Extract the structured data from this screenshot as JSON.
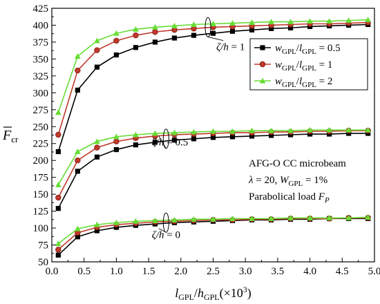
{
  "chart_data": {
    "type": "line",
    "xlabel_parts": {
      "l": "l",
      "l_sub": "GPL",
      "slash": "/",
      "h": "h",
      "h_sub": "GPL",
      "suffix": "(×10",
      "sup": "3",
      "close": ")"
    },
    "ylabel_parts": {
      "main": "F",
      "sub": "cr"
    },
    "xlim": [
      0,
      5
    ],
    "ylim": [
      50,
      425
    ],
    "x_ticks": [
      0.0,
      0.5,
      1.0,
      1.5,
      2.0,
      2.5,
      3.0,
      3.5,
      4.0,
      4.5,
      5.0
    ],
    "x_tick_labels": [
      "0.0",
      "0.5",
      "1.0",
      "1.5",
      "2.0",
      "2.5",
      "3.0",
      "3.5",
      "4.0",
      "4.5",
      "5.0"
    ],
    "y_ticks": [
      50,
      75,
      100,
      125,
      150,
      175,
      200,
      225,
      250,
      275,
      300,
      325,
      350,
      375,
      400,
      425
    ],
    "y_tick_labels": [
      "50",
      "75",
      "100",
      "125",
      "150",
      "175",
      "200",
      "225",
      "250",
      "275",
      "300",
      "325",
      "350",
      "375",
      "400",
      "425"
    ],
    "x": [
      0.1,
      0.4,
      0.7,
      1.0,
      1.3,
      1.6,
      1.9,
      2.2,
      2.5,
      2.8,
      3.1,
      3.4,
      3.7,
      4.0,
      4.3,
      4.6,
      4.9
    ],
    "legend": {
      "placement": "top-right",
      "entries": [
        {
          "pre": "w",
          "pre_sub": "GPL",
          "slash": "/",
          "mid": "l",
          "mid_sub": "GPL",
          "post": " = 0.5",
          "color": "#000000",
          "marker": "square"
        },
        {
          "pre": "w",
          "pre_sub": "GPL",
          "slash": "/",
          "mid": "l",
          "mid_sub": "GPL",
          "post": " = 1",
          "color": "#c0392b",
          "marker": "circle"
        },
        {
          "pre": "w",
          "pre_sub": "GPL",
          "slash": "/",
          "mid": "l",
          "mid_sub": "GPL",
          "post": " = 2",
          "color": "#66dd33",
          "marker": "triangle"
        }
      ]
    },
    "groups": [
      {
        "label_var": "ζ/h",
        "label_val": " = 1",
        "label_x": 2.55,
        "label_y": 363,
        "ellipse_x": 2.42,
        "ellipse_y": 397,
        "series": [
          {
            "color": "#000000",
            "marker": "square",
            "values": [
              213,
              304,
              338,
              356,
              367,
              375,
              381,
              385,
              388,
              391,
              393,
              395,
              396,
              398,
              399,
              400,
              401
            ]
          },
          {
            "color": "#c0392b",
            "marker": "circle",
            "values": [
              238,
              333,
              363,
              377,
              385,
              390,
              393,
              395,
              397,
              398,
              399,
              400,
              401,
              402,
              402,
              403,
              404
            ]
          },
          {
            "color": "#66dd33",
            "marker": "triangle",
            "values": [
              271,
              354,
              377,
              388,
              394,
              397,
              399,
              401,
              402,
              403,
              404,
              405,
              405,
              406,
              406,
              407,
              408
            ]
          }
        ]
      },
      {
        "label_var": "ζ/h",
        "label_val": " = 0.5",
        "label_x": 1.55,
        "label_y": 222,
        "ellipse_x": 1.77,
        "ellipse_y": 232,
        "series": [
          {
            "color": "#000000",
            "marker": "square",
            "values": [
              129,
              184,
              205,
              216,
              223,
              227,
              230,
              232,
              234,
              235,
              236,
              237,
              238,
              239,
              239,
              240,
              240
            ]
          },
          {
            "color": "#c0392b",
            "marker": "circle",
            "values": [
              145,
              200,
              219,
              228,
              233,
              236,
              238,
              239,
              240,
              241,
              241,
              242,
              242,
              243,
              243,
              244,
              244
            ]
          },
          {
            "color": "#66dd33",
            "marker": "triangle",
            "values": [
              164,
              213,
              228,
              235,
              238,
              240,
              241,
              242,
              243,
              243,
              244,
              244,
              244,
              245,
              245,
              245,
              245
            ]
          }
        ]
      },
      {
        "label_var": "ζ/h",
        "label_val": " = 0",
        "label_x": 1.55,
        "label_y": 85,
        "ellipse_x": 1.77,
        "ellipse_y": 108,
        "series": [
          {
            "color": "#000000",
            "marker": "square",
            "values": [
              60,
              87,
              96,
              101,
              104,
              106,
              108,
              109,
              110,
              111,
              112,
              112,
              113,
              113,
              114,
              114,
              114
            ]
          },
          {
            "color": "#c0392b",
            "marker": "circle",
            "values": [
              68,
              93,
              101,
              105,
              107,
              109,
              110,
              111,
              112,
              112,
              113,
              113,
              114,
              114,
              114,
              115,
              115
            ]
          },
          {
            "color": "#66dd33",
            "marker": "triangle",
            "values": [
              77,
              99,
              105,
              108,
              110,
              111,
              112,
              113,
              113,
              114,
              114,
              114,
              115,
              115,
              115,
              115,
              116
            ]
          }
        ]
      }
    ],
    "info_block": {
      "line1": "AFG-O CC microbeam",
      "line2_a": "λ = 20, ",
      "line2_b": "W",
      "line2_b_sub": "GPL",
      "line2_c": " = 1%",
      "line3_a": "Parabolical load ",
      "line3_b": "F",
      "line3_b_sub": "P"
    }
  }
}
